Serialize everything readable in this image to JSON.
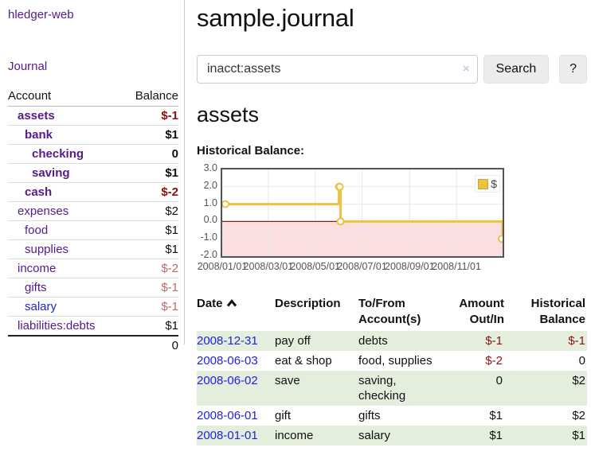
{
  "app": {
    "brand": "hledger-web",
    "nav_journal": "Journal"
  },
  "sidebar": {
    "header": {
      "account": "Account",
      "balance": "Balance"
    },
    "accounts": [
      {
        "name": "assets",
        "depth": 1,
        "balance": "$-1",
        "bold": true,
        "balance_class": "red-bold",
        "link": "purple"
      },
      {
        "name": "bank",
        "depth": 2,
        "balance": "$1",
        "bold": true,
        "balance_class": "plain",
        "link": "purple"
      },
      {
        "name": "checking",
        "depth": 3,
        "balance": "0",
        "bold": true,
        "balance_class": "plain",
        "link": "purple"
      },
      {
        "name": "saving",
        "depth": 3,
        "balance": "$1",
        "bold": true,
        "balance_class": "plain",
        "link": "purple"
      },
      {
        "name": "cash",
        "depth": 2,
        "balance": "$-2",
        "bold": true,
        "balance_class": "red-bold",
        "link": "purple"
      },
      {
        "name": "expenses",
        "depth": 1,
        "balance": "$2",
        "bold": false,
        "balance_class": "plain",
        "link": "purple"
      },
      {
        "name": "food",
        "depth": 2,
        "balance": "$1",
        "bold": false,
        "balance_class": "plain",
        "link": "purple"
      },
      {
        "name": "supplies",
        "depth": 2,
        "balance": "$1",
        "bold": false,
        "balance_class": "plain",
        "link": "purple"
      },
      {
        "name": "income",
        "depth": 1,
        "balance": "$-2",
        "bold": false,
        "balance_class": "red-muted",
        "link": "purple"
      },
      {
        "name": "gifts",
        "depth": 2,
        "balance": "$-1",
        "bold": false,
        "balance_class": "red-muted",
        "link": "purple"
      },
      {
        "name": "salary",
        "depth": 2,
        "balance": "$-1",
        "bold": false,
        "balance_class": "red-muted",
        "link": "blue"
      },
      {
        "name": "liabilities:debts",
        "depth": 1,
        "balance": "$1",
        "bold": false,
        "balance_class": "plain",
        "link": "purple"
      }
    ],
    "total": "0"
  },
  "header": {
    "title": "sample.journal"
  },
  "search": {
    "value": "inacct:assets",
    "clear_icon": "×",
    "button_label": "Search",
    "help_label": "?"
  },
  "account_page": {
    "title": "assets",
    "chart_heading": "Historical Balance:"
  },
  "chart_data": {
    "type": "line",
    "style": "step",
    "title": "Historical Balance:",
    "series": [
      {
        "name": "$",
        "color": "#edc240",
        "points": [
          [
            "2008-01-01",
            1
          ],
          [
            "2008-06-01",
            2
          ],
          [
            "2008-06-02",
            2
          ],
          [
            "2008-06-03",
            0
          ],
          [
            "2008-12-31",
            -1
          ]
        ]
      }
    ],
    "xlim": [
      "2008-01-01",
      "2008-12-31"
    ],
    "ylim": [
      -2,
      3
    ],
    "xticks": [
      {
        "date": "2008-01-01",
        "label": "2008/01/01"
      },
      {
        "date": "2008-03-01",
        "label": "2008/03/01"
      },
      {
        "date": "2008-05-01",
        "label": "2008/05/01"
      },
      {
        "date": "2008-07-01",
        "label": "2008/07/01"
      },
      {
        "date": "2008-09-01",
        "label": "2008/09/01"
      },
      {
        "date": "2008-11-01",
        "label": "2008/11/01"
      }
    ],
    "yticks": [
      {
        "value": 3,
        "label": "3.0"
      },
      {
        "value": 2,
        "label": "2.0"
      },
      {
        "value": 1,
        "label": "1.0"
      },
      {
        "value": 0,
        "label": "0.0"
      },
      {
        "value": -1,
        "label": "-1.0"
      },
      {
        "value": -2,
        "label": "-2.0"
      }
    ],
    "grid": true,
    "grid_color": "#e8e8e8",
    "negative_region_color": "#fbdede",
    "zero_line_color": "#8b1a1a",
    "legend": {
      "position": "top-right",
      "items": [
        {
          "label": "$",
          "color": "#edc240"
        }
      ]
    }
  },
  "register": {
    "headers": {
      "date": "Date",
      "description": "Description",
      "accounts": "To/From Account(s)",
      "amount": "Amount Out/In",
      "balance": "Historical Balance"
    },
    "sort": {
      "column": "date",
      "direction": "ascending"
    },
    "rows": [
      {
        "date": "2008-12-31",
        "description": "pay off",
        "accounts": "debts",
        "amount": "$-1",
        "amount_neg": true,
        "balance": "$-1",
        "balance_neg": true
      },
      {
        "date": "2008-06-03",
        "description": "eat & shop",
        "accounts": "food, supplies",
        "amount": "$-2",
        "amount_neg": true,
        "balance": "0",
        "balance_neg": false
      },
      {
        "date": "2008-06-02",
        "description": "save",
        "accounts": "saving, checking",
        "amount": "0",
        "amount_neg": false,
        "balance": "$2",
        "balance_neg": false
      },
      {
        "date": "2008-06-01",
        "description": "gift",
        "accounts": "gifts",
        "amount": "$1",
        "amount_neg": false,
        "balance": "$2",
        "balance_neg": false
      },
      {
        "date": "2008-01-01",
        "description": "income",
        "accounts": "salary",
        "amount": "$1",
        "amount_neg": false,
        "balance": "$1",
        "balance_neg": false
      }
    ]
  }
}
